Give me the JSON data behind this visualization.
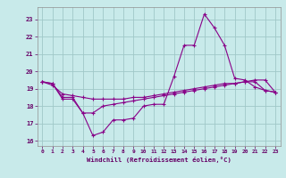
{
  "xlabel": "Windchill (Refroidissement éolien,°C)",
  "bg_color": "#c8eaea",
  "grid_color": "#a0c8c8",
  "line_color": "#880088",
  "xlim": [
    -0.5,
    23.5
  ],
  "ylim": [
    15.7,
    23.7
  ],
  "xticks": [
    0,
    1,
    2,
    3,
    4,
    5,
    6,
    7,
    8,
    9,
    10,
    11,
    12,
    13,
    14,
    15,
    16,
    17,
    18,
    19,
    20,
    21,
    22,
    23
  ],
  "yticks": [
    16,
    17,
    18,
    19,
    20,
    21,
    22,
    23
  ],
  "line1_x": [
    0,
    1,
    2,
    3,
    4,
    5,
    6,
    7,
    8,
    9,
    10,
    11,
    12,
    13,
    14,
    15,
    16,
    17,
    18,
    19,
    20,
    21,
    22,
    23
  ],
  "line1_y": [
    19.4,
    19.3,
    18.4,
    18.4,
    17.6,
    16.3,
    16.5,
    17.2,
    17.2,
    17.3,
    18.0,
    18.1,
    18.1,
    19.7,
    21.5,
    21.5,
    23.3,
    22.5,
    21.5,
    19.6,
    19.5,
    19.1,
    18.9,
    18.8
  ],
  "line2_x": [
    0,
    1,
    2,
    3,
    4,
    5,
    6,
    7,
    8,
    9,
    10,
    11,
    12,
    13,
    14,
    15,
    16,
    17,
    18,
    19,
    20,
    21,
    22,
    23
  ],
  "line2_y": [
    19.4,
    19.3,
    18.5,
    18.5,
    17.6,
    17.6,
    18.0,
    18.1,
    18.2,
    18.3,
    18.4,
    18.5,
    18.6,
    18.7,
    18.8,
    18.9,
    19.0,
    19.1,
    19.2,
    19.3,
    19.4,
    19.5,
    19.5,
    18.8
  ],
  "line3_x": [
    0,
    1,
    2,
    3,
    4,
    5,
    6,
    7,
    8,
    9,
    10,
    11,
    12,
    13,
    14,
    15,
    16,
    17,
    18,
    19,
    20,
    21,
    22,
    23
  ],
  "line3_y": [
    19.4,
    19.2,
    18.7,
    18.6,
    18.5,
    18.4,
    18.4,
    18.4,
    18.4,
    18.5,
    18.5,
    18.6,
    18.7,
    18.8,
    18.9,
    19.0,
    19.1,
    19.2,
    19.3,
    19.3,
    19.4,
    19.4,
    18.9,
    18.8
  ]
}
